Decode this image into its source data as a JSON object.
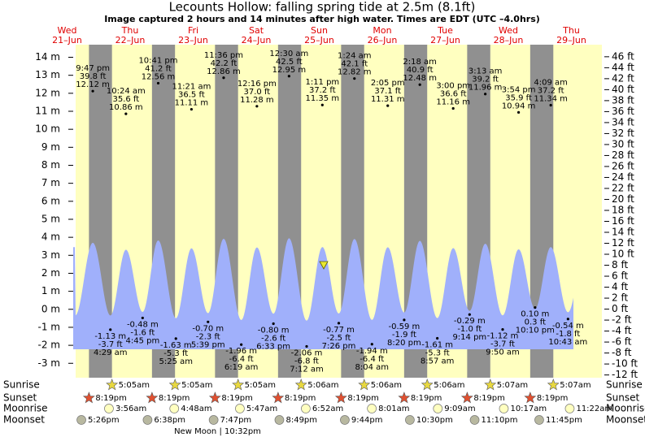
{
  "chart_data": {
    "type": "tide",
    "title": "Lecounts Hollow: falling  spring tide at 2.5m (8.1ft)",
    "subtitle": "Image captured 2 hours and 14 minutes after high water. Times are EDT (UTC –4.0hrs)",
    "ylim": [
      -3.8,
      14.7
    ],
    "yticks": [
      {
        "value": -3,
        "label": "-3 m"
      },
      {
        "value": -2,
        "label": "-2 m"
      },
      {
        "value": -1,
        "label": "-1 m"
      },
      {
        "value": 0,
        "label": "0 m"
      },
      {
        "value": 1,
        "label": "1 m"
      },
      {
        "value": 2,
        "label": "2 m"
      },
      {
        "value": 3,
        "label": "3 m"
      },
      {
        "value": 4,
        "label": "4 m"
      },
      {
        "value": 5,
        "label": "5 m"
      },
      {
        "value": 6,
        "label": "6 m"
      },
      {
        "value": 7,
        "label": "7 m"
      },
      {
        "value": 8,
        "label": "8 m"
      },
      {
        "value": 9,
        "label": "9 m"
      },
      {
        "value": 10,
        "label": "10 m"
      },
      {
        "value": 11,
        "label": "11 m"
      },
      {
        "value": 12,
        "label": "12 m"
      },
      {
        "value": 13,
        "label": "13 m"
      },
      {
        "value": 14,
        "label": "14 m"
      }
    ],
    "y2lim": [
      -12.5,
      48.2
    ],
    "y2ticks": [
      {
        "value": -12,
        "label": "-12 ft"
      },
      {
        "value": -10,
        "label": "-10 ft"
      },
      {
        "value": -8,
        "label": "-8 ft"
      },
      {
        "value": -6,
        "label": "-6 ft"
      },
      {
        "value": -4,
        "label": "-4 ft"
      },
      {
        "value": -2,
        "label": "-2 ft"
      },
      {
        "value": 0,
        "label": "0 ft"
      },
      {
        "value": 2,
        "label": "2 ft"
      },
      {
        "value": 4,
        "label": "4 ft"
      },
      {
        "value": 6,
        "label": "6 ft"
      },
      {
        "value": 8,
        "label": "8 ft"
      },
      {
        "value": 10,
        "label": "10 ft"
      },
      {
        "value": 12,
        "label": "12 ft"
      },
      {
        "value": 14,
        "label": "14 ft"
      },
      {
        "value": 16,
        "label": "16 ft"
      },
      {
        "value": 18,
        "label": "18 ft"
      },
      {
        "value": 20,
        "label": "20 ft"
      },
      {
        "value": 22,
        "label": "22 ft"
      },
      {
        "value": 24,
        "label": "24 ft"
      },
      {
        "value": 26,
        "label": "26 ft"
      },
      {
        "value": 28,
        "label": "28 ft"
      },
      {
        "value": 30,
        "label": "30 ft"
      },
      {
        "value": 32,
        "label": "32 ft"
      },
      {
        "value": 34,
        "label": "34 ft"
      },
      {
        "value": 36,
        "label": "36 ft"
      },
      {
        "value": 38,
        "label": "38 ft"
      },
      {
        "value": 40,
        "label": "40 ft"
      },
      {
        "value": 42,
        "label": "42 ft"
      },
      {
        "value": 44,
        "label": "44 ft"
      },
      {
        "value": 46,
        "label": "46 ft"
      }
    ],
    "rows": [
      "Sunrise",
      "Sunset",
      "Moonrise",
      "Moonset"
    ],
    "days": [
      {
        "day": "Wed",
        "date": "21–Jun",
        "sunrise": null,
        "sunset": "8:19pm",
        "moonrise": null,
        "moonset": "5:26pm",
        "tides": [
          {
            "time": "9:47 pm",
            "ft": 39.8,
            "ft_label": "39.8 ft",
            "m": 12.12,
            "m_label": "12.12 m"
          }
        ]
      },
      {
        "day": "Thu",
        "date": "22–Jun",
        "sunrise": "5:05am",
        "sunset": "8:19pm",
        "moonrise": "3:56am",
        "moonset": "6:38pm",
        "tides": [
          {
            "time": "4:29 am",
            "ft": -3.7,
            "ft_label": "-3.7 ft",
            "m": -1.13,
            "m_label": "-1.13 m"
          },
          {
            "time": "10:24 am",
            "ft": 35.6,
            "ft_label": "35.6 ft",
            "m": 10.86,
            "m_label": "10.86 m"
          },
          {
            "time": "4:45 pm",
            "ft": -1.6,
            "ft_label": "-1.6 ft",
            "m": -0.48,
            "m_label": "-0.48 m"
          },
          {
            "time": "10:41 pm",
            "ft": 41.2,
            "ft_label": "41.2 ft",
            "m": 12.56,
            "m_label": "12.56 m"
          }
        ]
      },
      {
        "day": "Fri",
        "date": "23–Jun",
        "sunrise": "5:05am",
        "sunset": "8:19pm",
        "moonrise": "4:48am",
        "moonset": "7:47pm",
        "moon_phase": "New Moon | 10:32pm",
        "tides": [
          {
            "time": "5:25 am",
            "ft": -5.3,
            "ft_label": "-5.3 ft",
            "m": -1.63,
            "m_label": "-1.63 m"
          },
          {
            "time": "11:21 am",
            "ft": 36.5,
            "ft_label": "36.5 ft",
            "m": 11.11,
            "m_label": "11.11 m"
          },
          {
            "time": "5:39 pm",
            "ft": -2.3,
            "ft_label": "-2.3 ft",
            "m": -0.7,
            "m_label": "-0.70 m"
          },
          {
            "time": "11:36 pm",
            "ft": 42.2,
            "ft_label": "42.2 ft",
            "m": 12.86,
            "m_label": "12.86 m"
          }
        ]
      },
      {
        "day": "Sat",
        "date": "24–Jun",
        "sunrise": "5:05am",
        "sunset": "8:19pm",
        "moonrise": "5:47am",
        "moonset": "8:49pm",
        "tides": [
          {
            "time": "6:19 am",
            "ft": -6.4,
            "ft_label": "-6.4 ft",
            "m": -1.96,
            "m_label": "-1.96 m"
          },
          {
            "time": "12:16 pm",
            "ft": 37.0,
            "ft_label": "37.0 ft",
            "m": 11.28,
            "m_label": "11.28 m"
          },
          {
            "time": "6:33 pm",
            "ft": -2.6,
            "ft_label": "-2.6 ft",
            "m": -0.8,
            "m_label": "-0.80 m"
          }
        ]
      },
      {
        "day": "Sun",
        "date": "25–Jun",
        "sunrise": "5:06am",
        "sunset": "8:19pm",
        "moonrise": "6:52am",
        "moonset": "9:44pm",
        "tides": [
          {
            "time": "12:30 am",
            "ft": 42.5,
            "ft_label": "42.5 ft",
            "m": 12.95,
            "m_label": "12.95 m"
          },
          {
            "time": "7:12 am",
            "ft": -6.8,
            "ft_label": "-6.8 ft",
            "m": -2.06,
            "m_label": "-2.06 m"
          },
          {
            "time": "1:11 pm",
            "ft": 37.2,
            "ft_label": "37.2 ft",
            "m": 11.35,
            "m_label": "11.35 m"
          },
          {
            "time": "7:26 pm",
            "ft": -2.5,
            "ft_label": "-2.5 ft",
            "m": -0.77,
            "m_label": "-0.77 m"
          }
        ]
      },
      {
        "day": "Mon",
        "date": "26–Jun",
        "sunrise": "5:06am",
        "sunset": "8:19pm",
        "moonrise": "8:01am",
        "moonset": "10:30pm",
        "tides": [
          {
            "time": "1:24 am",
            "ft": 42.1,
            "ft_label": "42.1 ft",
            "m": 12.82,
            "m_label": "12.82 m"
          },
          {
            "time": "8:04 am",
            "ft": -6.4,
            "ft_label": "-6.4 ft",
            "m": -1.94,
            "m_label": "-1.94 m"
          },
          {
            "time": "2:05 pm",
            "ft": 37.1,
            "ft_label": "37.1 ft",
            "m": 11.31,
            "m_label": "11.31 m"
          },
          {
            "time": "8:20 pm",
            "ft": -1.9,
            "ft_label": "-1.9 ft",
            "m": -0.59,
            "m_label": "-0.59 m"
          }
        ]
      },
      {
        "day": "Tue",
        "date": "27–Jun",
        "sunrise": "5:06am",
        "sunset": "8:19pm",
        "moonrise": "9:09am",
        "moonset": "11:10pm",
        "tides": [
          {
            "time": "2:18 am",
            "ft": 40.9,
            "ft_label": "40.9 ft",
            "m": 12.48,
            "m_label": "12.48 m"
          },
          {
            "time": "8:57 am",
            "ft": -5.3,
            "ft_label": "-5.3 ft",
            "m": -1.61,
            "m_label": "-1.61 m"
          },
          {
            "time": "3:00 pm",
            "ft": 36.6,
            "ft_label": "36.6 ft",
            "m": 11.16,
            "m_label": "11.16 m"
          },
          {
            "time": "9:14 pm",
            "ft": -1.0,
            "ft_label": "-1.0 ft",
            "m": -0.29,
            "m_label": "-0.29 m"
          }
        ]
      },
      {
        "day": "Wed",
        "date": "28–Jun",
        "sunrise": "5:07am",
        "sunset": "8:19pm",
        "moonrise": "10:17am",
        "moonset": "11:45pm",
        "tides": [
          {
            "time": "3:13 am",
            "ft": 39.2,
            "ft_label": "39.2 ft",
            "m": 11.96,
            "m_label": "11.96 m"
          },
          {
            "time": "9:50 am",
            "ft": -3.7,
            "ft_label": "-3.7 ft",
            "m": -1.12,
            "m_label": "-1.12 m"
          },
          {
            "time": "3:54 pm",
            "ft": 35.9,
            "ft_label": "35.9 ft",
            "m": 10.94,
            "m_label": "10.94 m"
          },
          {
            "time": "10:10 pm",
            "ft": 0.3,
            "ft_label": "0.3 ft",
            "m": 0.1,
            "m_label": "0.10 m"
          }
        ]
      },
      {
        "day": "Thu",
        "date": "29–Jun",
        "sunrise": "5:07am",
        "sunset": null,
        "moonrise": "11:22am",
        "moonset": null,
        "tides": [
          {
            "time": "4:09 am",
            "ft": 37.2,
            "ft_label": "37.2 ft",
            "m": 11.34,
            "m_label": "11.34 m"
          },
          {
            "time": "10:43 am",
            "ft": -1.8,
            "ft_label": "-1.8 ft",
            "m": -0.54,
            "m_label": "-0.54 m"
          }
        ]
      }
    ]
  }
}
